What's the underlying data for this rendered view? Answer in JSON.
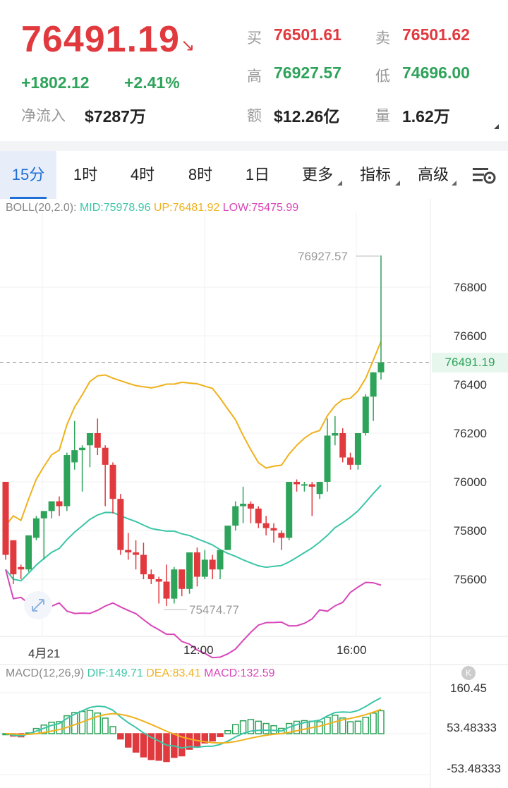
{
  "header": {
    "price": "76491.19",
    "change": "+1802.12",
    "change_pct": "+2.41%",
    "net_inflow_label": "净流入",
    "net_inflow_value": "$7287万",
    "buy_label": "买",
    "buy_value": "76501.61",
    "sell_label": "卖",
    "sell_value": "76501.62",
    "high_label": "高",
    "high_value": "76927.57",
    "low_label": "低",
    "low_value": "74696.00",
    "amount_label": "额",
    "amount_value": "$12.26亿",
    "volume_label": "量",
    "volume_value": "1.62万"
  },
  "tabs": [
    {
      "label": "15分",
      "active": true
    },
    {
      "label": "1时"
    },
    {
      "label": "4时"
    },
    {
      "label": "8时"
    },
    {
      "label": "1日"
    },
    {
      "label": "更多",
      "dropdown": true
    },
    {
      "label": "指标",
      "dropdown": true
    },
    {
      "label": "高级",
      "dropdown": true
    }
  ],
  "icons": {
    "settings": "chart-settings-icon",
    "expand": "expand-icon",
    "k": "k-badge-icon"
  },
  "boll": {
    "name": "BOLL(20,2.0):",
    "mid": "MID:75978.96",
    "up": "UP:76481.92",
    "low": "LOW:75475.99"
  },
  "macd": {
    "name": "MACD(12,26,9)",
    "dif": "DIF:149.71",
    "dea": "DEA:83.41",
    "macd": "MACD:132.59"
  },
  "colors": {
    "up": "#2ea35a",
    "down": "#e0393e",
    "mid": "#3cc5a8",
    "upper": "#efb11d",
    "lower": "#d846b8",
    "accent": "#1f6fd6"
  },
  "chart_data": {
    "type": "candlestick",
    "y_ticks": [
      "76800",
      "76600",
      "76400",
      "76200",
      "76000",
      "75800",
      "75600"
    ],
    "x_ticks": [
      "4月21",
      "12:00",
      "16:00"
    ],
    "current_price_label": "76491.19",
    "max_label": "76927.57",
    "min_label": "75474.77",
    "ylim": [
      75350,
      76950
    ],
    "candles": [
      [
        76000,
        75990,
        75700,
        75680
      ],
      [
        75760,
        75760,
        75620,
        75580
      ],
      [
        75650,
        75660,
        75640,
        75600
      ],
      [
        75640,
        75780,
        75780,
        75630
      ],
      [
        75770,
        75860,
        75850,
        75760
      ],
      [
        75850,
        75880,
        75880,
        75680
      ],
      [
        75880,
        75920,
        75920,
        75850
      ],
      [
        75920,
        75940,
        75900,
        75860
      ],
      [
        75900,
        76120,
        76110,
        75880
      ],
      [
        76080,
        76250,
        76130,
        76050
      ],
      [
        76130,
        76150,
        76140,
        75960
      ],
      [
        76150,
        76200,
        76200,
        76060
      ],
      [
        76200,
        76260,
        76140,
        76110
      ],
      [
        76140,
        76150,
        76070,
        75900
      ],
      [
        76070,
        76080,
        75930,
        75870
      ],
      [
        75930,
        75950,
        75720,
        75700
      ],
      [
        75720,
        75790,
        75710,
        75680
      ],
      [
        75710,
        75760,
        75700,
        75640
      ],
      [
        75700,
        75750,
        75620,
        75600
      ],
      [
        75620,
        75640,
        75600,
        75580
      ],
      [
        75600,
        75610,
        75590,
        75500
      ],
      [
        75590,
        75660,
        75520,
        75490
      ],
      [
        75520,
        75650,
        75640,
        75500
      ],
      [
        75640,
        75640,
        75560,
        75530
      ],
      [
        75560,
        75710,
        75710,
        75540
      ],
      [
        75710,
        75730,
        75610,
        75570
      ],
      [
        75610,
        75720,
        75680,
        75600
      ],
      [
        75680,
        75700,
        75640,
        75600
      ],
      [
        75640,
        75720,
        75720,
        75600
      ],
      [
        75720,
        75820,
        75820,
        75720
      ],
      [
        75820,
        75920,
        75900,
        75800
      ],
      [
        75900,
        75980,
        75910,
        75830
      ],
      [
        75910,
        75920,
        75890,
        75830
      ],
      [
        75890,
        75900,
        75830,
        75810
      ],
      [
        75830,
        75860,
        75810,
        75780
      ],
      [
        75810,
        75830,
        75800,
        75750
      ],
      [
        75790,
        75800,
        75770,
        75720
      ],
      [
        75770,
        76000,
        76000,
        75760
      ],
      [
        76000,
        76010,
        75990,
        75960
      ],
      [
        75990,
        76000,
        75990,
        75960
      ],
      [
        75990,
        76000,
        75980,
        75860
      ],
      [
        75950,
        76000,
        76000,
        75930
      ],
      [
        76000,
        76260,
        76190,
        75960
      ],
      [
        76190,
        76270,
        76200,
        76150
      ],
      [
        76200,
        76220,
        76100,
        76080
      ],
      [
        76100,
        76120,
        76070,
        76050
      ],
      [
        76070,
        76200,
        76200,
        76050
      ],
      [
        76200,
        76360,
        76350,
        76190
      ],
      [
        76350,
        76450,
        76450,
        76250
      ],
      [
        76450,
        76930,
        76491,
        76420
      ]
    ],
    "macd_ticks": [
      "160.45",
      "53.48333",
      "-53.48333"
    ]
  }
}
